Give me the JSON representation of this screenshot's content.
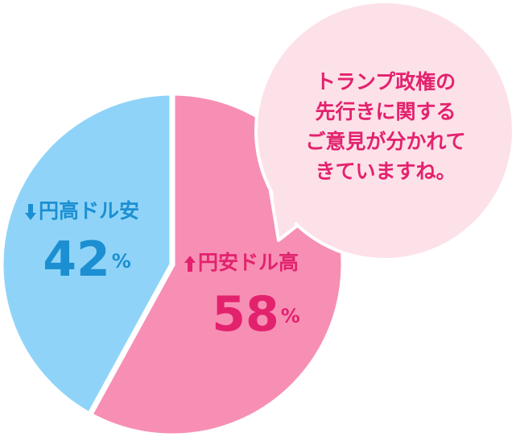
{
  "chart_data": {
    "type": "pie",
    "categories": [
      "円安ドル高",
      "円高ドル安"
    ],
    "values": [
      58,
      42
    ],
    "unit": "%",
    "colors": [
      "#f78fb4",
      "#8fd4f8"
    ],
    "label_colors": [
      "#e3226e",
      "#1c8fd2"
    ],
    "annotation": [
      "トランプ政権の",
      "先行きに関する",
      "ご意見が分かれて",
      "きていますね。"
    ]
  }
}
